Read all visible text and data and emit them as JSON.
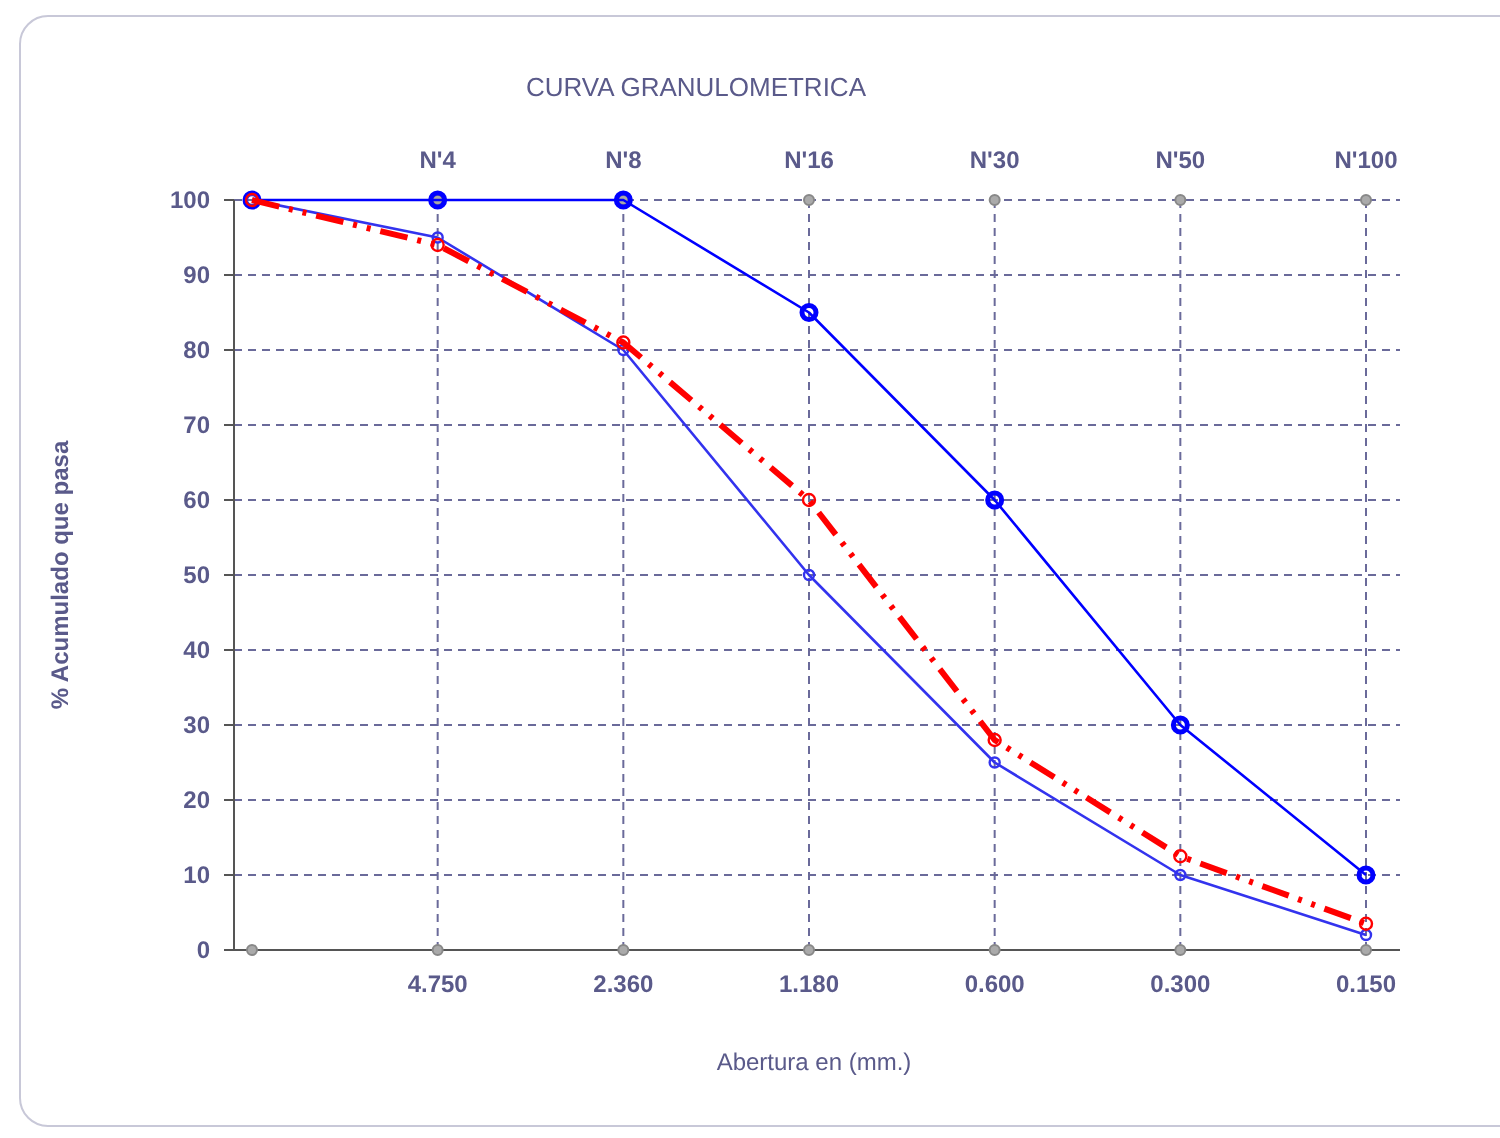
{
  "chart_data": {
    "type": "line",
    "title": "CURVA GRANULOMETRICA",
    "xlabel": "Abertura en (mm.)",
    "ylabel": "% Acumulado que pasa",
    "categories": [
      null,
      "4.750",
      "2.360",
      "1.180",
      "0.600",
      "0.300",
      "0.150"
    ],
    "annotations": [
      "N'4",
      "N'8",
      "N'16",
      "N'30",
      "N'50",
      "N'100"
    ],
    "series": [
      {
        "color": "#0000ff",
        "values": [
          100,
          100,
          100,
          85,
          60,
          30,
          10
        ],
        "line_style": "solid"
      },
      {
        "color": "#3333ee",
        "values": [
          100,
          95,
          80,
          50,
          25,
          10,
          2
        ],
        "line_style": "solid"
      },
      {
        "color": "#ff0000",
        "values": [
          100,
          94,
          81,
          60,
          28,
          12.5,
          3.5
        ],
        "line_style": "dashed"
      }
    ],
    "ylim": [
      0,
      100
    ],
    "yticks": [
      0,
      10,
      20,
      30,
      40,
      50,
      60,
      70,
      80,
      90,
      100
    ],
    "grid": true,
    "marker": "circle"
  }
}
